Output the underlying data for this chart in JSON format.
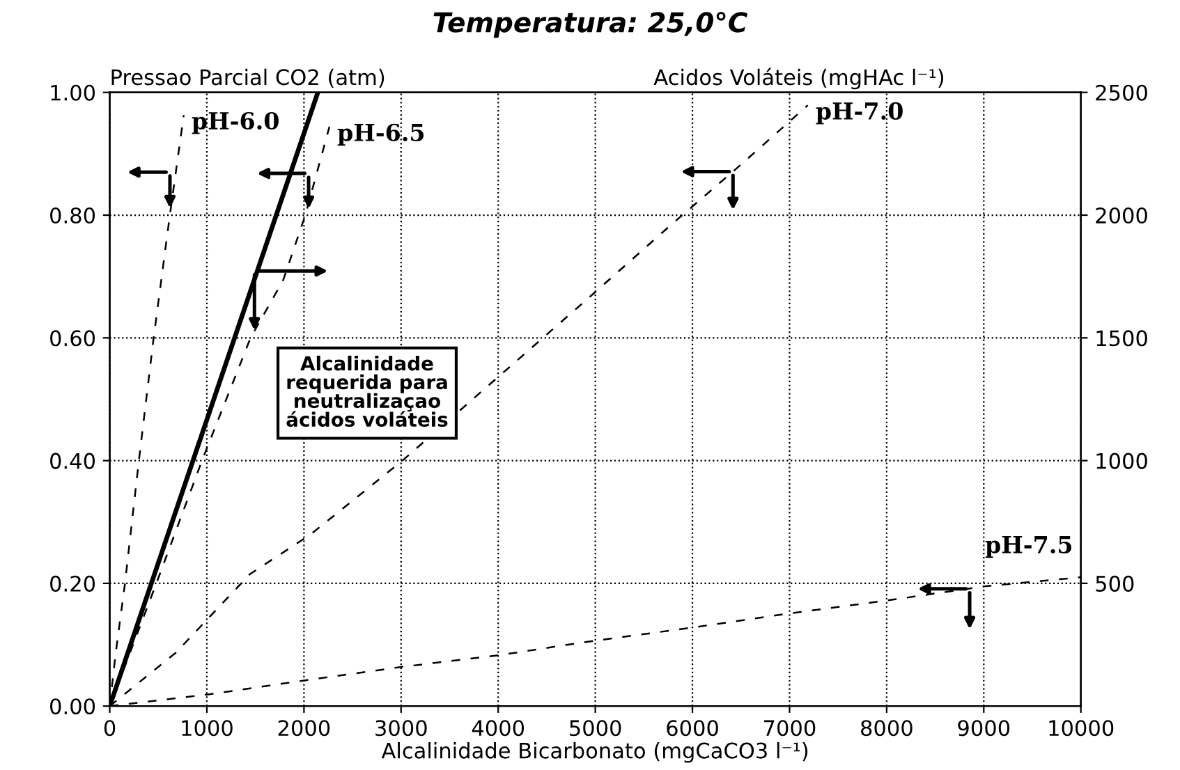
{
  "chart_data": {
    "type": "line",
    "title": "Temperatura: 25,0°C",
    "xlabel": "Alcalinidade Bicarbonato (mgCaCO3 l⁻¹)",
    "ylabel": "Pressao Parcial CO2 (atm)",
    "y2label": "Acidos Voláteis (mgHAc l⁻¹)",
    "series": [
      {
        "name": "pH-6.0",
        "color": "#000000",
        "line_style": "dashed",
        "x": [
          0,
          62,
          157,
          300,
          452,
          619,
          762
        ],
        "values": [
          0,
          0.087,
          0.2,
          0.4,
          0.6,
          0.8,
          0.963
        ]
      },
      {
        "name": "pH-6.5",
        "color": "#000000",
        "line_style": "dashed",
        "x": [
          0,
          480,
          950,
          1450,
          1786,
          2014,
          2262
        ],
        "values": [
          0,
          0.2,
          0.4,
          0.6,
          0.694,
          0.8,
          0.944
        ]
      },
      {
        "name": "pH-7.0",
        "color": "#000000",
        "line_style": "dashed",
        "x": [
          0,
          681,
          1443,
          2062,
          3014,
          4880,
          5793,
          6490,
          7188
        ],
        "values": [
          0,
          0.087,
          0.215,
          0.279,
          0.4,
          0.658,
          0.786,
          0.881,
          0.979
        ]
      },
      {
        "name": "pH-7.5",
        "color": "#000000",
        "line_style": "dashed",
        "x": [
          0,
          1014,
          2014,
          3014,
          4014,
          4880,
          6000,
          7000,
          8000,
          9000,
          10000
        ],
        "values": [
          0,
          0.019,
          0.042,
          0.064,
          0.083,
          0.104,
          0.128,
          0.151,
          0.172,
          0.195,
          0.21
        ]
      },
      {
        "color": "#000000",
        "line_style": "solid",
        "axis": "y2",
        "x": [
          0,
          2143
        ],
        "values": [
          0,
          2500
        ]
      }
    ],
    "annotations": [
      "Alcalinidade\nrequerida para\nneutralizaçao\nácidos voláteis"
    ],
    "xlim": [
      0,
      10000
    ],
    "xticks": [
      0,
      1000,
      2000,
      3000,
      4000,
      5000,
      6000,
      7000,
      8000,
      9000,
      10000
    ],
    "ylim": [
      0,
      1
    ],
    "yticks": [
      {
        "value": 0,
        "label": "0.00"
      },
      {
        "value": 0.2,
        "label": "0.20"
      },
      {
        "value": 0.4,
        "label": "0.40"
      },
      {
        "value": 0.6,
        "label": "0.60"
      },
      {
        "value": 0.8,
        "label": "0.80"
      },
      {
        "value": 1,
        "label": "1.00"
      }
    ],
    "y2lim": [
      0,
      2500
    ],
    "y2ticks": [
      500,
      1000,
      1500,
      2000,
      2500
    ],
    "grid": true
  }
}
